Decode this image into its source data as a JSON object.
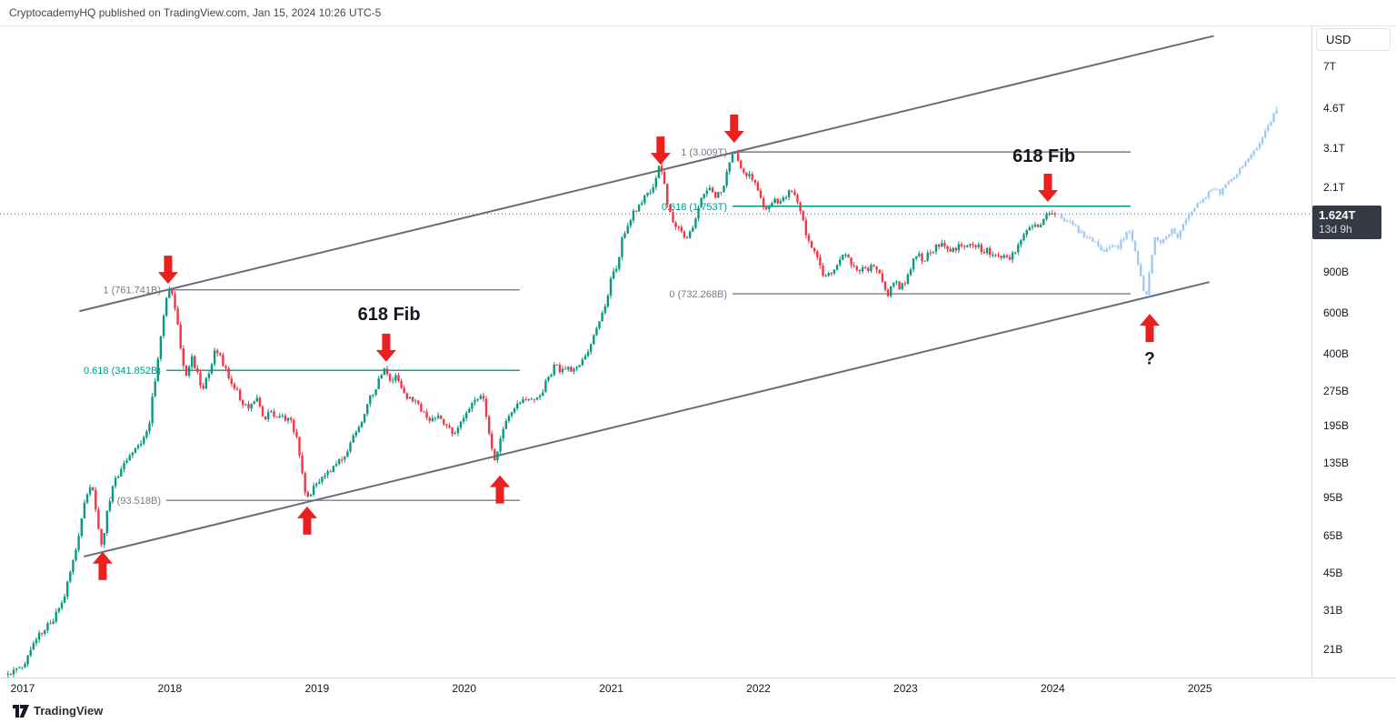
{
  "header": {
    "attribution": "CryptocademyHQ published on TradingView.com, Jan 15, 2024 10:26 UTC-5"
  },
  "watermark": {
    "label": "TradingView"
  },
  "axis": {
    "currency_button": "USD"
  },
  "chart_data": {
    "type": "candlestick",
    "scale": "log",
    "value_unit": "billions USD",
    "x_axis": {
      "ticks": [
        "2017",
        "2018",
        "2019",
        "2020",
        "2021",
        "2022",
        "2023",
        "2024",
        "2025"
      ]
    },
    "y_axis": {
      "ticks": [
        {
          "label": "7T",
          "value": 7000
        },
        {
          "label": "4.6T",
          "value": 4600
        },
        {
          "label": "3.1T",
          "value": 3100
        },
        {
          "label": "2.1T",
          "value": 2100
        },
        {
          "label": "900B",
          "value": 900
        },
        {
          "label": "600B",
          "value": 600
        },
        {
          "label": "400B",
          "value": 400
        },
        {
          "label": "275B",
          "value": 275
        },
        {
          "label": "195B",
          "value": 195
        },
        {
          "label": "135B",
          "value": 135
        },
        {
          "label": "95B",
          "value": 95
        },
        {
          "label": "65B",
          "value": 65
        },
        {
          "label": "45B",
          "value": 45
        },
        {
          "label": "31B",
          "value": 31
        },
        {
          "label": "21B",
          "value": 21
        }
      ]
    },
    "current_price": {
      "label": "1.624T",
      "value": 1624,
      "countdown": "13d 9h"
    },
    "colors": {
      "up": "#089981",
      "down": "#f23645",
      "projection": "#a3c9ee",
      "fib_gray": "#787b86",
      "fib_teal": "#009688",
      "trendline": "#6a6d78",
      "arrow": "#eb1f1f",
      "price_line": "#565a63",
      "annotation_text": "#14171f"
    },
    "historical_path": [
      [
        2016.9,
        16.5
      ],
      [
        2016.98,
        17.5
      ],
      [
        2017.04,
        19
      ],
      [
        2017.1,
        23
      ],
      [
        2017.16,
        26
      ],
      [
        2017.22,
        28
      ],
      [
        2017.28,
        33
      ],
      [
        2017.34,
        44
      ],
      [
        2017.4,
        68
      ],
      [
        2017.45,
        100
      ],
      [
        2017.49,
        108
      ],
      [
        2017.53,
        72
      ],
      [
        2017.56,
        59
      ],
      [
        2017.6,
        88
      ],
      [
        2017.65,
        116
      ],
      [
        2017.7,
        130
      ],
      [
        2017.74,
        145
      ],
      [
        2017.79,
        165
      ],
      [
        2017.84,
        170
      ],
      [
        2017.88,
        205
      ],
      [
        2017.92,
        320
      ],
      [
        2017.95,
        450
      ],
      [
        2017.98,
        600
      ],
      [
        2018.01,
        761.7
      ],
      [
        2018.05,
        680
      ],
      [
        2018.09,
        430
      ],
      [
        2018.13,
        320
      ],
      [
        2018.17,
        390
      ],
      [
        2018.2,
        340
      ],
      [
        2018.24,
        270
      ],
      [
        2018.28,
        330
      ],
      [
        2018.32,
        410
      ],
      [
        2018.36,
        390
      ],
      [
        2018.41,
        330
      ],
      [
        2018.46,
        290
      ],
      [
        2018.51,
        245
      ],
      [
        2018.56,
        235
      ],
      [
        2018.61,
        255
      ],
      [
        2018.66,
        215
      ],
      [
        2018.71,
        220
      ],
      [
        2018.76,
        210
      ],
      [
        2018.81,
        215
      ],
      [
        2018.85,
        200
      ],
      [
        2018.89,
        170
      ],
      [
        2018.93,
        105
      ],
      [
        2018.96,
        93.5
      ],
      [
        2019.0,
        112
      ],
      [
        2019.05,
        118
      ],
      [
        2019.1,
        122
      ],
      [
        2019.15,
        132
      ],
      [
        2019.2,
        145
      ],
      [
        2019.25,
        168
      ],
      [
        2019.31,
        200
      ],
      [
        2019.36,
        245
      ],
      [
        2019.41,
        285
      ],
      [
        2019.45,
        320
      ],
      [
        2019.48,
        341.9
      ],
      [
        2019.52,
        295
      ],
      [
        2019.56,
        325
      ],
      [
        2019.6,
        285
      ],
      [
        2019.65,
        255
      ],
      [
        2019.7,
        242
      ],
      [
        2019.75,
        222
      ],
      [
        2019.8,
        205
      ],
      [
        2019.85,
        218
      ],
      [
        2019.89,
        196
      ],
      [
        2019.94,
        186
      ],
      [
        2019.98,
        192
      ],
      [
        2020.03,
        222
      ],
      [
        2020.08,
        250
      ],
      [
        2020.12,
        268
      ],
      [
        2020.16,
        245
      ],
      [
        2020.2,
        160
      ],
      [
        2020.23,
        140
      ],
      [
        2020.27,
        183
      ],
      [
        2020.31,
        205
      ],
      [
        2020.36,
        228
      ],
      [
        2020.41,
        250
      ],
      [
        2020.46,
        255
      ],
      [
        2020.51,
        262
      ],
      [
        2020.56,
        285
      ],
      [
        2020.6,
        330
      ],
      [
        2020.64,
        358
      ],
      [
        2020.68,
        340
      ],
      [
        2020.73,
        347
      ],
      [
        2020.78,
        352
      ],
      [
        2020.82,
        380
      ],
      [
        2020.86,
        420
      ],
      [
        2020.9,
        480
      ],
      [
        2020.94,
        555
      ],
      [
        2020.98,
        650
      ],
      [
        2021.02,
        870
      ],
      [
        2021.06,
        980
      ],
      [
        2021.1,
        1320
      ],
      [
        2021.14,
        1480
      ],
      [
        2021.18,
        1680
      ],
      [
        2021.22,
        1850
      ],
      [
        2021.26,
        1950
      ],
      [
        2021.3,
        2150
      ],
      [
        2021.34,
        2550
      ],
      [
        2021.37,
        2480
      ],
      [
        2021.4,
        1750
      ],
      [
        2021.44,
        1500
      ],
      [
        2021.48,
        1380
      ],
      [
        2021.52,
        1280
      ],
      [
        2021.55,
        1320
      ],
      [
        2021.59,
        1550
      ],
      [
        2021.63,
        1950
      ],
      [
        2021.67,
        2120
      ],
      [
        2021.71,
        2000
      ],
      [
        2021.75,
        1950
      ],
      [
        2021.79,
        2200
      ],
      [
        2021.82,
        2650
      ],
      [
        2021.85,
        3009
      ],
      [
        2021.88,
        2750
      ],
      [
        2021.92,
        2450
      ],
      [
        2021.96,
        2350
      ],
      [
        2022.0,
        2250
      ],
      [
        2022.04,
        1800
      ],
      [
        2022.08,
        1720
      ],
      [
        2022.12,
        1850
      ],
      [
        2022.16,
        1800
      ],
      [
        2022.2,
        1950
      ],
      [
        2022.24,
        2050
      ],
      [
        2022.28,
        1850
      ],
      [
        2022.32,
        1500
      ],
      [
        2022.36,
        1250
      ],
      [
        2022.4,
        1150
      ],
      [
        2022.44,
        950
      ],
      [
        2022.47,
        860
      ],
      [
        2022.52,
        920
      ],
      [
        2022.56,
        1020
      ],
      [
        2022.6,
        1120
      ],
      [
        2022.64,
        1020
      ],
      [
        2022.68,
        960
      ],
      [
        2022.72,
        940
      ],
      [
        2022.76,
        950
      ],
      [
        2022.8,
        960
      ],
      [
        2022.84,
        900
      ],
      [
        2022.87,
        760
      ],
      [
        2022.9,
        732.3
      ],
      [
        2022.94,
        810
      ],
      [
        2022.98,
        790
      ],
      [
        2023.02,
        800
      ],
      [
        2023.06,
        990
      ],
      [
        2023.1,
        1070
      ],
      [
        2023.14,
        1030
      ],
      [
        2023.18,
        1120
      ],
      [
        2023.22,
        1160
      ],
      [
        2023.26,
        1190
      ],
      [
        2023.3,
        1130
      ],
      [
        2023.34,
        1140
      ],
      [
        2023.38,
        1160
      ],
      [
        2023.42,
        1190
      ],
      [
        2023.46,
        1210
      ],
      [
        2023.5,
        1170
      ],
      [
        2023.54,
        1140
      ],
      [
        2023.58,
        1120
      ],
      [
        2023.62,
        1050
      ],
      [
        2023.66,
        1060
      ],
      [
        2023.7,
        1040
      ],
      [
        2023.74,
        1070
      ],
      [
        2023.78,
        1160
      ],
      [
        2023.82,
        1280
      ],
      [
        2023.86,
        1380
      ],
      [
        2023.9,
        1430
      ],
      [
        2023.94,
        1500
      ],
      [
        2023.98,
        1590
      ],
      [
        2024.03,
        1624
      ]
    ],
    "projected_path": [
      [
        2024.06,
        1560
      ],
      [
        2024.1,
        1480
      ],
      [
        2024.14,
        1520
      ],
      [
        2024.18,
        1400
      ],
      [
        2024.22,
        1330
      ],
      [
        2024.26,
        1280
      ],
      [
        2024.3,
        1220
      ],
      [
        2024.34,
        1160
      ],
      [
        2024.38,
        1120
      ],
      [
        2024.42,
        1180
      ],
      [
        2024.46,
        1140
      ],
      [
        2024.5,
        1280
      ],
      [
        2024.54,
        1380
      ],
      [
        2024.58,
        1100
      ],
      [
        2024.62,
        850
      ],
      [
        2024.65,
        690
      ],
      [
        2024.68,
        950
      ],
      [
        2024.71,
        1280
      ],
      [
        2024.75,
        1220
      ],
      [
        2024.79,
        1300
      ],
      [
        2024.83,
        1380
      ],
      [
        2024.87,
        1300
      ],
      [
        2024.91,
        1450
      ],
      [
        2024.95,
        1600
      ],
      [
        2024.99,
        1750
      ],
      [
        2025.03,
        1850
      ],
      [
        2025.07,
        1950
      ],
      [
        2025.11,
        2100
      ],
      [
        2025.15,
        2000
      ],
      [
        2025.19,
        2150
      ],
      [
        2025.23,
        2300
      ],
      [
        2025.27,
        2450
      ],
      [
        2025.31,
        2600
      ],
      [
        2025.35,
        2800
      ],
      [
        2025.39,
        3050
      ],
      [
        2025.43,
        3350
      ],
      [
        2025.47,
        3750
      ],
      [
        2025.51,
        4250
      ],
      [
        2025.54,
        4550
      ]
    ],
    "fib_sets": [
      {
        "x_start_year": 2017.976,
        "x_end_year": 2020.378,
        "levels": [
          {
            "label": "1 (761.741B)",
            "value": 761.741,
            "color": "#787b86"
          },
          {
            "label": "0.618 (341.852B)",
            "value": 341.852,
            "color": "#009688"
          },
          {
            "label": "0 (93.518B)",
            "value": 93.518,
            "color": "#787b86"
          }
        ]
      },
      {
        "x_start_year": 2021.824,
        "x_end_year": 2024.529,
        "levels": [
          {
            "label": "1 (3.009T)",
            "value": 3009,
            "color": "#787b86"
          },
          {
            "label": "0.618 (1.753T)",
            "value": 1753,
            "color": "#009688"
          },
          {
            "label": "0 (732.268B)",
            "value": 732.268,
            "color": "#787b86"
          }
        ]
      }
    ],
    "trendlines": [
      {
        "name": "upper-channel-line",
        "points": [
          [
            2017.39,
            617
          ],
          [
            2025.09,
            9550
          ]
        ]
      },
      {
        "name": "lower-channel-line",
        "points": [
          [
            2017.42,
            53.5
          ],
          [
            2025.06,
            822
          ]
        ]
      }
    ],
    "annotations": {
      "arrows": [
        {
          "dir": "down",
          "year": 2017.988,
          "value": 809
        },
        {
          "dir": "down",
          "year": 2019.47,
          "value": 372
        },
        {
          "dir": "down",
          "year": 2021.335,
          "value": 2650
        },
        {
          "dir": "down",
          "year": 2021.835,
          "value": 3300
        },
        {
          "dir": "down",
          "year": 2023.967,
          "value": 1830
        },
        {
          "dir": "up",
          "year": 2017.543,
          "value": 56
        },
        {
          "dir": "up",
          "year": 2018.933,
          "value": 88
        },
        {
          "dir": "up",
          "year": 2020.243,
          "value": 120
        },
        {
          "dir": "up",
          "year": 2024.659,
          "value": 600
        }
      ],
      "texts": [
        {
          "text": "618 Fib",
          "year": 2019.49,
          "value": 600,
          "size": 20
        },
        {
          "text": "618 Fib",
          "year": 2023.94,
          "value": 2900,
          "size": 20
        },
        {
          "text": "?",
          "year": 2024.659,
          "value": 385,
          "size": 19
        }
      ]
    }
  }
}
